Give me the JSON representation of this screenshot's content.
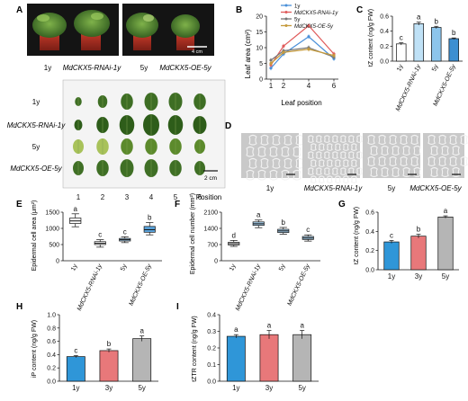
{
  "panel_letters": [
    "A",
    "B",
    "C",
    "D",
    "E",
    "F",
    "G",
    "H",
    "I"
  ],
  "panel_a": {
    "photo_scale": "4 cm",
    "photo_labels": [
      "1y",
      "MdCKX5-RNAi-1y",
      "5y",
      "MdCKX5-OE-5y"
    ],
    "leaf_rows": [
      "1y",
      "MdCKX5-RNAi-1y",
      "5y",
      "MdCKX5-OE-5y"
    ],
    "leaf_positions": [
      "1",
      "2",
      "3",
      "4",
      "5",
      "6"
    ],
    "position_label": "Position",
    "leaf_scale": "2 cm"
  },
  "panel_d": {
    "labels": [
      "1y",
      "MdCKX5-RNAi-1y",
      "5y",
      "MdCKX5-OE-5y"
    ]
  },
  "colors": {
    "1y": "#4a90d9",
    "rnai": "#e05b5b",
    "5y": "#777777",
    "oe": "#c59a3c",
    "bar_1y": "#2f96d8",
    "bar_3y": "#e8787a",
    "bar_5y": "#b5b5b5",
    "bar_c_1y": "#ffffff",
    "bar_c_rnai": "#bfe1f6",
    "bar_c_5y": "#8cc5ec",
    "bar_c_oe": "#3d8fd1"
  },
  "chart_data": [
    {
      "id": "B",
      "type": "line",
      "x": [
        1,
        2,
        4,
        6
      ],
      "xlabel": "Leaf position",
      "ylabel": "Leaf area (cm²)",
      "ylim": [
        0,
        20
      ],
      "yticks": [
        0,
        5,
        10,
        15,
        20
      ],
      "series": [
        {
          "name": "1y",
          "values": [
            3.5,
            8.0,
            13.5,
            6.5
          ],
          "color": "#4a90d9"
        },
        {
          "name": "MdCKX5-RNAi-1y",
          "values": [
            4.5,
            10.5,
            17.0,
            8.0
          ],
          "color": "#e05b5b"
        },
        {
          "name": "5y",
          "values": [
            6.0,
            9.0,
            10.0,
            7.0
          ],
          "color": "#777777"
        },
        {
          "name": "MdCKX5-OE-5y",
          "values": [
            5.0,
            8.5,
            9.5,
            7.5
          ],
          "color": "#c59a3c"
        }
      ]
    },
    {
      "id": "C",
      "type": "bar",
      "categories": [
        "1y",
        "MdCKX5-RNAi-1y",
        "5y",
        "MdCKX5-OE-5y"
      ],
      "values": [
        0.23,
        0.5,
        0.45,
        0.3
      ],
      "errors": [
        0.015,
        0.02,
        0.015,
        0.01
      ],
      "letters": [
        "c",
        "a",
        "b",
        "b"
      ],
      "ylabel": "tZ content (ng/g FW)",
      "ylim": [
        0,
        0.6
      ],
      "yticks": [
        0.0,
        0.2,
        0.4,
        0.6
      ]
    },
    {
      "id": "E",
      "type": "box",
      "categories": [
        "1y",
        "MdCKX5-RNAi-1y",
        "5y",
        "MdCKX5-OE-5y"
      ],
      "boxes": [
        {
          "min": 1050,
          "q1": 1150,
          "median": 1230,
          "q3": 1320,
          "max": 1450
        },
        {
          "min": 420,
          "q1": 500,
          "median": 540,
          "q3": 590,
          "max": 650
        },
        {
          "min": 560,
          "q1": 610,
          "median": 650,
          "q3": 690,
          "max": 740
        },
        {
          "min": 800,
          "q1": 880,
          "median": 960,
          "q3": 1060,
          "max": 1180
        }
      ],
      "letters": [
        "a",
        "c",
        "c",
        "b"
      ],
      "ylabel": "Epidermal cell area (μm²)",
      "ylim": [
        0,
        1500
      ],
      "yticks": [
        0,
        500,
        1000,
        1500
      ]
    },
    {
      "id": "F",
      "type": "box",
      "categories": [
        "1y",
        "MdCKX5-RNAi-1y",
        "5y",
        "MdCKX5-OE-5y"
      ],
      "boxes": [
        {
          "min": 620,
          "q1": 680,
          "median": 740,
          "q3": 800,
          "max": 880
        },
        {
          "min": 1430,
          "q1": 1530,
          "median": 1600,
          "q3": 1680,
          "max": 1760
        },
        {
          "min": 1150,
          "q1": 1220,
          "median": 1290,
          "q3": 1360,
          "max": 1440
        },
        {
          "min": 850,
          "q1": 920,
          "median": 980,
          "q3": 1050,
          "max": 1120
        }
      ],
      "letters": [
        "d",
        "a",
        "b",
        "c"
      ],
      "ylabel": "Epidermal cell number (mm²)",
      "ylim": [
        0,
        2100
      ],
      "yticks": [
        0,
        700,
        1400,
        2100
      ]
    },
    {
      "id": "G",
      "type": "bar",
      "categories": [
        "1y",
        "3y",
        "5y"
      ],
      "values": [
        0.29,
        0.35,
        0.55
      ],
      "errors": [
        0.015,
        0.02,
        0.012
      ],
      "letters": [
        "c",
        "b",
        "a"
      ],
      "ylabel": "tZ content (ng/g FW)",
      "ylim": [
        0,
        0.6
      ],
      "yticks": [
        0.0,
        0.2,
        0.4,
        0.6
      ]
    },
    {
      "id": "H",
      "type": "bar",
      "categories": [
        "1y",
        "3y",
        "5y"
      ],
      "values": [
        0.37,
        0.46,
        0.64
      ],
      "errors": [
        0.015,
        0.025,
        0.04
      ],
      "letters": [
        "c",
        "b",
        "a"
      ],
      "ylabel": "iP content (ng/g FW)",
      "ylim": [
        0,
        1.0
      ],
      "yticks": [
        0.0,
        0.2,
        0.4,
        0.6,
        0.8,
        1.0
      ]
    },
    {
      "id": "I",
      "type": "bar",
      "categories": [
        "1y",
        "3y",
        "5y"
      ],
      "values": [
        0.27,
        0.28,
        0.28
      ],
      "errors": [
        0.01,
        0.025,
        0.025
      ],
      "letters": [
        "a",
        "a",
        "a"
      ],
      "ylabel": "tZTR content (ng/g FW)",
      "ylim": [
        0,
        0.4
      ],
      "yticks": [
        0.0,
        0.1,
        0.2,
        0.3,
        0.4
      ]
    }
  ]
}
